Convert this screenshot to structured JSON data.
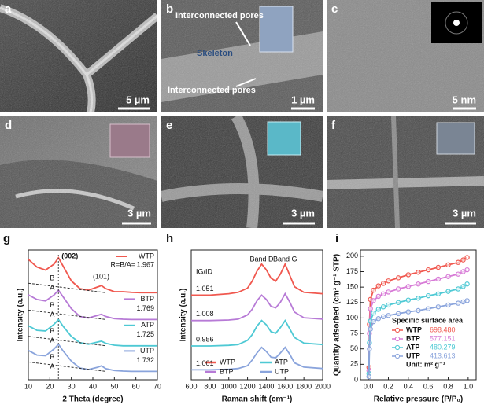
{
  "micrographs": [
    {
      "letter": "a",
      "scale_bar": "5 µm"
    },
    {
      "letter": "b",
      "scale_bar": "1 µm",
      "annotations": [
        "Interconnected pores",
        "Skeleton",
        "Interconnected pores"
      ]
    },
    {
      "letter": "c",
      "scale_bar": "5 nm"
    },
    {
      "letter": "d",
      "scale_bar": "3 µm"
    },
    {
      "letter": "e",
      "scale_bar": "3 µm"
    },
    {
      "letter": "f",
      "scale_bar": "3 µm"
    }
  ],
  "chart_data": [
    {
      "type": "line",
      "letter": "g",
      "x_label": "2 Theta  (degree)",
      "y_label": "Intensity (a.u.)",
      "peak_labels": [
        "(002)",
        "(101)"
      ],
      "baseline_labels": [
        "B",
        "A"
      ],
      "xlim": [
        10,
        70
      ],
      "xticks": [
        10,
        20,
        30,
        40,
        50,
        60,
        70
      ],
      "ylim": [
        0,
        4.2
      ],
      "x": [
        10,
        14,
        18,
        22,
        24,
        26,
        30,
        34,
        38,
        42,
        44,
        46,
        50,
        54,
        58,
        62,
        66,
        70
      ],
      "series": [
        {
          "name": "WTP",
          "color": "#f0584f",
          "r_prefix": "R=B/A=",
          "r": 1.967,
          "values": [
            3.9,
            3.65,
            3.55,
            3.75,
            3.95,
            3.7,
            3.2,
            2.95,
            2.9,
            3.0,
            3.05,
            2.95,
            2.85,
            2.85,
            2.83,
            2.82,
            2.82,
            2.82
          ]
        },
        {
          "name": "BTP",
          "color": "#b77ad6",
          "r": 1.769,
          "values": [
            2.75,
            2.6,
            2.55,
            2.75,
            2.9,
            2.7,
            2.3,
            2.05,
            2.0,
            2.08,
            2.12,
            2.05,
            1.98,
            1.96,
            1.95,
            1.95,
            1.95,
            1.95
          ]
        },
        {
          "name": "ATP",
          "color": "#4ec9d4",
          "r": 1.725,
          "values": [
            1.75,
            1.6,
            1.58,
            1.8,
            1.95,
            1.75,
            1.4,
            1.2,
            1.15,
            1.22,
            1.25,
            1.18,
            1.12,
            1.1,
            1.1,
            1.1,
            1.1,
            1.1
          ]
        },
        {
          "name": "UTP",
          "color": "#8aa4dc",
          "r": 1.732,
          "values": [
            0.95,
            0.8,
            0.78,
            1.0,
            1.15,
            0.95,
            0.6,
            0.38,
            0.33,
            0.4,
            0.45,
            0.36,
            0.3,
            0.28,
            0.27,
            0.27,
            0.27,
            0.27
          ]
        }
      ]
    },
    {
      "type": "line",
      "letter": "h",
      "x_label": "Raman shift (cm⁻¹)",
      "y_label": "Intensity (a.u.)",
      "peak_labels": [
        "Band D",
        "Band G"
      ],
      "ratio_label": "IG/ID",
      "xlim": [
        600,
        2000
      ],
      "xticks": [
        600,
        800,
        1000,
        1200,
        1400,
        1600,
        1800,
        2000
      ],
      "ylim": [
        0,
        4.6
      ],
      "x": [
        600,
        800,
        1000,
        1100,
        1200,
        1250,
        1300,
        1350,
        1400,
        1450,
        1500,
        1550,
        1600,
        1650,
        1700,
        1800,
        2000
      ],
      "series": [
        {
          "name": "WTP",
          "color": "#f0584f",
          "ratio": 1.051,
          "values": [
            3.0,
            3.0,
            3.05,
            3.1,
            3.25,
            3.5,
            3.85,
            4.1,
            3.9,
            3.6,
            3.5,
            3.75,
            4.1,
            3.7,
            3.3,
            3.1,
            3.05
          ]
        },
        {
          "name": "BTP",
          "color": "#b77ad6",
          "ratio": 1.008,
          "values": [
            2.1,
            2.1,
            2.12,
            2.15,
            2.3,
            2.5,
            2.8,
            3.0,
            2.85,
            2.6,
            2.55,
            2.75,
            3.05,
            2.75,
            2.4,
            2.2,
            2.15
          ]
        },
        {
          "name": "ATP",
          "color": "#4ec9d4",
          "ratio": 0.956,
          "values": [
            1.2,
            1.2,
            1.22,
            1.25,
            1.4,
            1.6,
            1.9,
            2.1,
            1.95,
            1.7,
            1.65,
            1.85,
            2.1,
            1.8,
            1.5,
            1.3,
            1.25
          ]
        },
        {
          "name": "UTP",
          "color": "#8aa4dc",
          "ratio": 1.001,
          "values": [
            0.35,
            0.35,
            0.37,
            0.4,
            0.5,
            0.7,
            0.95,
            1.15,
            1.0,
            0.8,
            0.78,
            0.95,
            1.15,
            0.9,
            0.6,
            0.45,
            0.4
          ]
        }
      ]
    },
    {
      "type": "line",
      "markers": true,
      "letter": "i",
      "x_label": "Relative pressure (P/P₀)",
      "y_label": "Quantity adsorbed (cm³ g⁻¹ STP)",
      "legend_title": "Specific surface area",
      "legend_unit": "Unit: m² g⁻¹",
      "xlim": [
        -0.08,
        1.08
      ],
      "xticks": [
        {
          "value": 0,
          "label": "0.0"
        },
        {
          "value": 0.2,
          "label": "0.2"
        },
        {
          "value": 0.4,
          "label": "0.4"
        },
        {
          "value": 0.6,
          "label": "0.6"
        },
        {
          "value": 0.8,
          "label": "0.8"
        },
        {
          "value": 1,
          "label": "1.0"
        }
      ],
      "ylim": [
        0,
        210
      ],
      "yticks": [
        0,
        25,
        50,
        75,
        100,
        125,
        150,
        175,
        200
      ],
      "x": [
        0.005,
        0.01,
        0.02,
        0.05,
        0.1,
        0.15,
        0.2,
        0.3,
        0.4,
        0.5,
        0.6,
        0.7,
        0.8,
        0.9,
        0.95,
        0.99
      ],
      "series": [
        {
          "name": "WTP",
          "color": "#f0584f",
          "surface_area": {
            "value": 698.48,
            "label": "698.480"
          },
          "values": [
            20,
            90,
            130,
            145,
            152,
            156,
            160,
            165,
            170,
            174,
            178,
            182,
            186,
            190,
            194,
            198
          ]
        },
        {
          "name": "BTP",
          "color": "#d77ad6",
          "surface_area": 577.151,
          "values": [
            15,
            75,
            115,
            128,
            135,
            139,
            142,
            147,
            151,
            155,
            159,
            163,
            167,
            171,
            175,
            178
          ]
        },
        {
          "name": "ATP",
          "color": "#4ec9d4",
          "surface_area": 480.279,
          "values": [
            10,
            60,
            95,
            108,
            114,
            118,
            121,
            125,
            129,
            132,
            136,
            139,
            143,
            147,
            151,
            155
          ]
        },
        {
          "name": "UTP",
          "color": "#8aa4dc",
          "surface_area": 413.613,
          "values": [
            5,
            50,
            82,
            94,
            99,
            102,
            104,
            107,
            110,
            112,
            115,
            118,
            121,
            124,
            126,
            128
          ]
        }
      ]
    }
  ]
}
